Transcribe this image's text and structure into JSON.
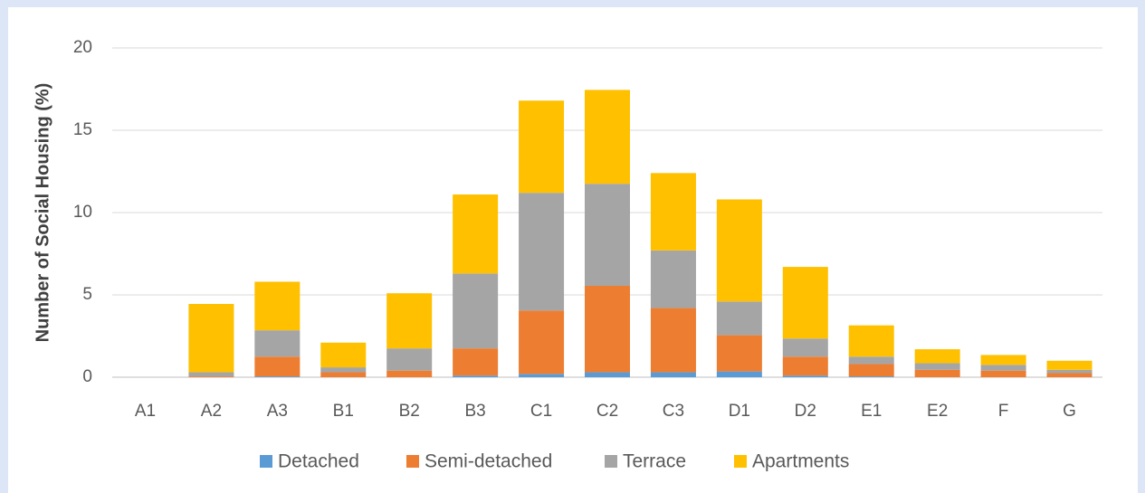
{
  "chart_data": {
    "type": "stacked_bar",
    "y_label": "Number of Social Housing (%)",
    "categories": [
      "A1",
      "A2",
      "A3",
      "B1",
      "B2",
      "B3",
      "C1",
      "C2",
      "C3",
      "D1",
      "D2",
      "E1",
      "E2",
      "F",
      "G"
    ],
    "series": [
      {
        "name": "Detached",
        "color": "#5b9bd5",
        "values": [
          0,
          0,
          0.05,
          0,
          0,
          0.1,
          0.2,
          0.3,
          0.3,
          0.35,
          0.1,
          0.05,
          0,
          0,
          0
        ]
      },
      {
        "name": "Semi-detached",
        "color": "#ed7d31",
        "values": [
          0,
          0.05,
          1.2,
          0.3,
          0.4,
          1.65,
          3.85,
          5.25,
          3.9,
          2.2,
          1.15,
          0.75,
          0.45,
          0.4,
          0.25
        ]
      },
      {
        "name": "Terrace",
        "color": "#a5a5a5",
        "values": [
          0,
          0.25,
          1.6,
          0.3,
          1.35,
          4.55,
          7.15,
          6.2,
          3.5,
          2.05,
          1.1,
          0.45,
          0.4,
          0.35,
          0.2
        ]
      },
      {
        "name": "Apartments",
        "color": "#ffc000",
        "values": [
          0,
          4.15,
          2.95,
          1.5,
          3.35,
          4.8,
          5.6,
          5.7,
          4.7,
          6.2,
          4.35,
          1.9,
          0.85,
          0.6,
          0.55
        ]
      }
    ],
    "ylim": [
      0,
      20
    ],
    "yticks": [
      0,
      5,
      10,
      15,
      20
    ],
    "grid": true,
    "legend": "bottom"
  }
}
